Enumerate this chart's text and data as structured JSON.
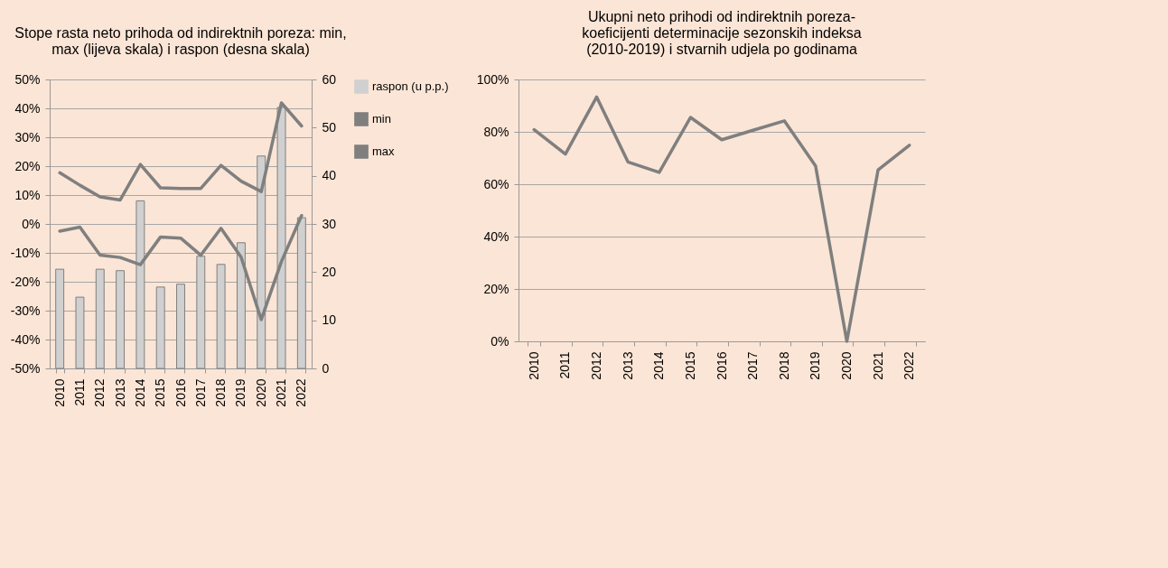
{
  "chart_data": [
    {
      "type": "line",
      "title": "Stope rasta neto prihoda od indirektnih poreza: min, max (lijeva skala) i raspon (desna skala)",
      "categories": [
        "2010",
        "2011",
        "2012",
        "2013",
        "2014",
        "2015",
        "2016",
        "2017",
        "2018",
        "2019",
        "2020",
        "2021",
        "2022"
      ],
      "series": [
        {
          "name": "raspon (u p.p.)",
          "type": "bar",
          "axis": "y2",
          "color": "#d0d0d0",
          "values": [
            20.6,
            14.8,
            20.6,
            20.3,
            34.8,
            16.9,
            17.5,
            23.3,
            21.6,
            26.1,
            44.1,
            54.2,
            31.3
          ]
        },
        {
          "name": "min",
          "color": "#7f7f7f",
          "values": [
            -2.5,
            -1.1,
            -10.8,
            -11.6,
            -14.1,
            -4.5,
            -4.9,
            -10.8,
            -1.5,
            -11.5,
            -33.1,
            -13,
            2.9
          ]
        },
        {
          "name": "max",
          "color": "#7f7f7f",
          "values": [
            17.7,
            13.4,
            9.4,
            8.3,
            20.6,
            12.5,
            12.3,
            12.3,
            20.3,
            14.8,
            11.2,
            41.9,
            33.9
          ]
        }
      ],
      "ylim": [
        -50,
        50
      ],
      "yticks": [
        {
          "value": -50,
          "label": "-50%"
        },
        {
          "value": -40,
          "label": "-40%"
        },
        {
          "value": -30,
          "label": "-30%"
        },
        {
          "value": -20,
          "label": "-20%"
        },
        {
          "value": -10,
          "label": "-10%"
        },
        {
          "value": 0,
          "label": "0%"
        },
        {
          "value": 10,
          "label": "10%"
        },
        {
          "value": 20,
          "label": "20%"
        },
        {
          "value": 30,
          "label": "30%"
        },
        {
          "value": 40,
          "label": "40%"
        },
        {
          "value": 50,
          "label": "50%"
        }
      ],
      "y2lim": [
        0,
        60
      ],
      "y2ticks": [
        0,
        10,
        20,
        30,
        40,
        50,
        60
      ],
      "grid": "y",
      "legend": "right"
    },
    {
      "type": "line",
      "title": "Ukupni neto prihodi od indirektnih poreza- koeficijenti determinacije sezonskih indeksa (2010-2019) i stvarnih udjela po godinama",
      "categories": [
        "2010",
        "2011",
        "2012",
        "2013",
        "2014",
        "2015",
        "2016",
        "2017",
        "2018",
        "2019",
        "2020",
        "2021",
        "2022"
      ],
      "series": [
        {
          "color": "#7f7f7f",
          "values": [
            80.8,
            71.5,
            93.3,
            68.5,
            64.5,
            85.5,
            77,
            80.6,
            84.2,
            67,
            0,
            65.5,
            74.9
          ]
        }
      ],
      "ylim": [
        0,
        100
      ],
      "yticks": [
        {
          "value": 0,
          "label": "0%"
        },
        {
          "value": 20,
          "label": "20%"
        },
        {
          "value": 40,
          "label": "40%"
        },
        {
          "value": 60,
          "label": "60%"
        },
        {
          "value": 80,
          "label": "80%"
        },
        {
          "value": 100,
          "label": "100%"
        }
      ],
      "grid": "y"
    }
  ]
}
